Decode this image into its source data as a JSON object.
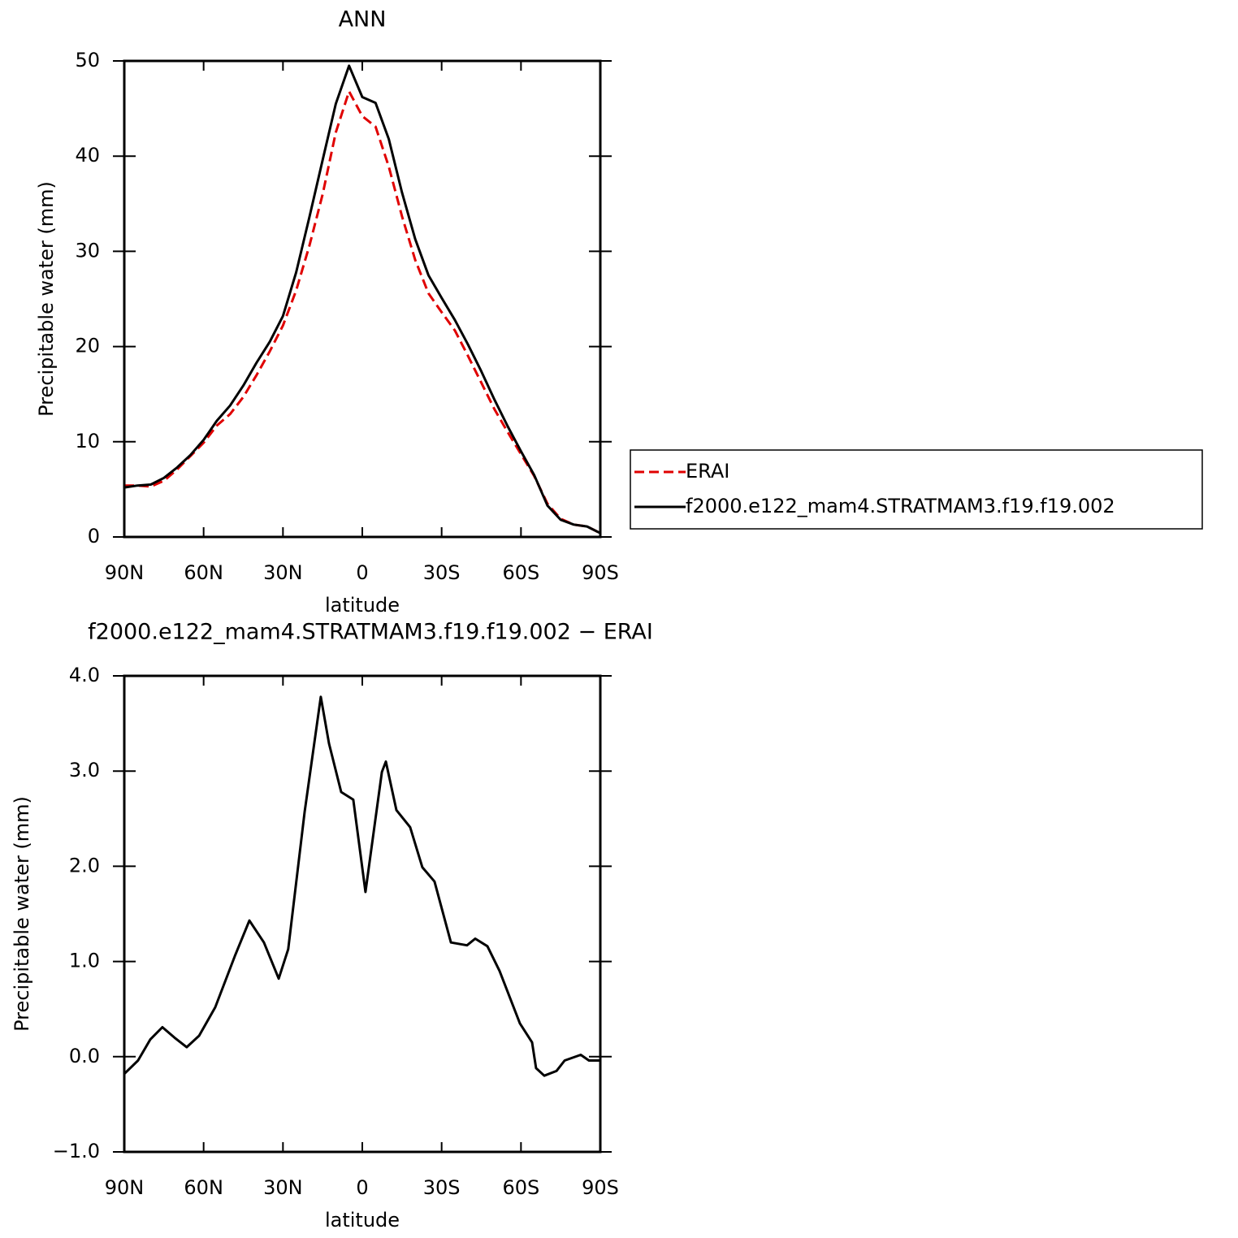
{
  "chart_data": [
    {
      "type": "line",
      "title": "ANN",
      "x_label": "latitude",
      "y_label": "Precipitable water (mm)",
      "x": [
        90,
        85,
        80,
        75,
        70,
        65,
        60,
        55,
        50,
        45,
        40,
        35,
        30,
        25,
        20,
        15,
        10,
        5,
        0,
        -5,
        -10,
        -15,
        -20,
        -25,
        -30,
        -35,
        -40,
        -45,
        -50,
        -55,
        -60,
        -65,
        -70,
        -75,
        -80,
        -85,
        -90
      ],
      "series": [
        {
          "name": "ERAI",
          "color": "#e00000",
          "dashed": true,
          "values": [
            5.4,
            5.4,
            5.3,
            5.9,
            7.1,
            8.5,
            9.9,
            11.7,
            12.9,
            14.7,
            17.0,
            19.5,
            22.2,
            25.9,
            30.6,
            36.0,
            42.5,
            46.8,
            44.2,
            43.1,
            38.9,
            33.7,
            29.1,
            25.6,
            23.6,
            21.7,
            19.0,
            16.2,
            13.4,
            11.0,
            8.7,
            6.4,
            3.5,
            1.9,
            1.3,
            1.1,
            0.4
          ]
        },
        {
          "name": "f2000.e122_mam4.STRATMAM3.f19.f19.002",
          "color": "#000000",
          "dashed": false,
          "values": [
            5.2,
            5.4,
            5.5,
            6.2,
            7.3,
            8.6,
            10.2,
            12.2,
            13.8,
            15.9,
            18.3,
            20.5,
            23.2,
            27.8,
            33.6,
            39.6,
            45.5,
            49.5,
            46.2,
            45.6,
            41.8,
            36.2,
            31.3,
            27.5,
            25.1,
            22.8,
            20.2,
            17.4,
            14.4,
            11.6,
            9.0,
            6.5,
            3.3,
            1.8,
            1.3,
            1.1,
            0.4
          ]
        }
      ],
      "xlim": [
        90,
        -90
      ],
      "xticks": [
        {
          "value": 90,
          "label": "90N"
        },
        {
          "value": 60,
          "label": "60N"
        },
        {
          "value": 30,
          "label": "30N"
        },
        0,
        {
          "value": -30,
          "label": "30S"
        },
        {
          "value": -60,
          "label": "60S"
        },
        {
          "value": -90,
          "label": "90S"
        }
      ],
      "ylim": [
        0,
        50
      ],
      "yticks": [
        0,
        10,
        20,
        30,
        40,
        50
      ],
      "legend": "right",
      "grid": false
    },
    {
      "type": "line",
      "title": "f2000.e122_mam4.STRATMAM3.f19.f19.002 − ERAI",
      "x_label": "latitude",
      "y_label": "Precipitable water (mm)",
      "x": [
        90,
        84.8,
        80.2,
        75.6,
        71,
        66.4,
        61.7,
        55.6,
        48,
        42.7,
        37.2,
        31.6,
        28,
        21.8,
        15.7,
        12.6,
        8,
        3.4,
        -1.2,
        -7.4,
        -8.9,
        -12.9,
        -18.1,
        -22.7,
        -27.3,
        -33.5,
        -39.6,
        -42.7,
        -47.3,
        -51.9,
        -59.6,
        -64.2,
        -65.7,
        -68.8,
        -73.4,
        -76.5,
        -82.6,
        -85.7,
        -90
      ],
      "values": [
        -0.18,
        -0.04,
        0.18,
        0.31,
        0.2,
        0.1,
        0.22,
        0.52,
        1.07,
        1.43,
        1.2,
        0.82,
        1.13,
        2.57,
        3.78,
        3.29,
        2.78,
        2.7,
        1.73,
        2.99,
        3.1,
        2.59,
        2.41,
        1.99,
        1.84,
        1.2,
        1.17,
        1.24,
        1.16,
        0.9,
        0.35,
        0.15,
        -0.12,
        -0.2,
        -0.15,
        -0.04,
        0.02,
        -0.04,
        -0.04
      ],
      "color": "#000000",
      "xlim": [
        90,
        -90
      ],
      "xticks": [
        {
          "value": 90,
          "label": "90N"
        },
        {
          "value": 60,
          "label": "60N"
        },
        {
          "value": 30,
          "label": "30N"
        },
        0,
        {
          "value": -30,
          "label": "30S"
        },
        {
          "value": -60,
          "label": "60S"
        },
        {
          "value": -90,
          "label": "90S"
        }
      ],
      "ylim": [
        -1,
        4
      ],
      "yticks": [
        {
          "value": -1,
          "label": "−1.0"
        },
        {
          "value": 0,
          "label": "0.0"
        },
        {
          "value": 1,
          "label": "1.0"
        },
        {
          "value": 2,
          "label": "2.0"
        },
        {
          "value": 3,
          "label": "3.0"
        },
        {
          "value": 4,
          "label": "4.0"
        }
      ],
      "grid": false
    }
  ]
}
